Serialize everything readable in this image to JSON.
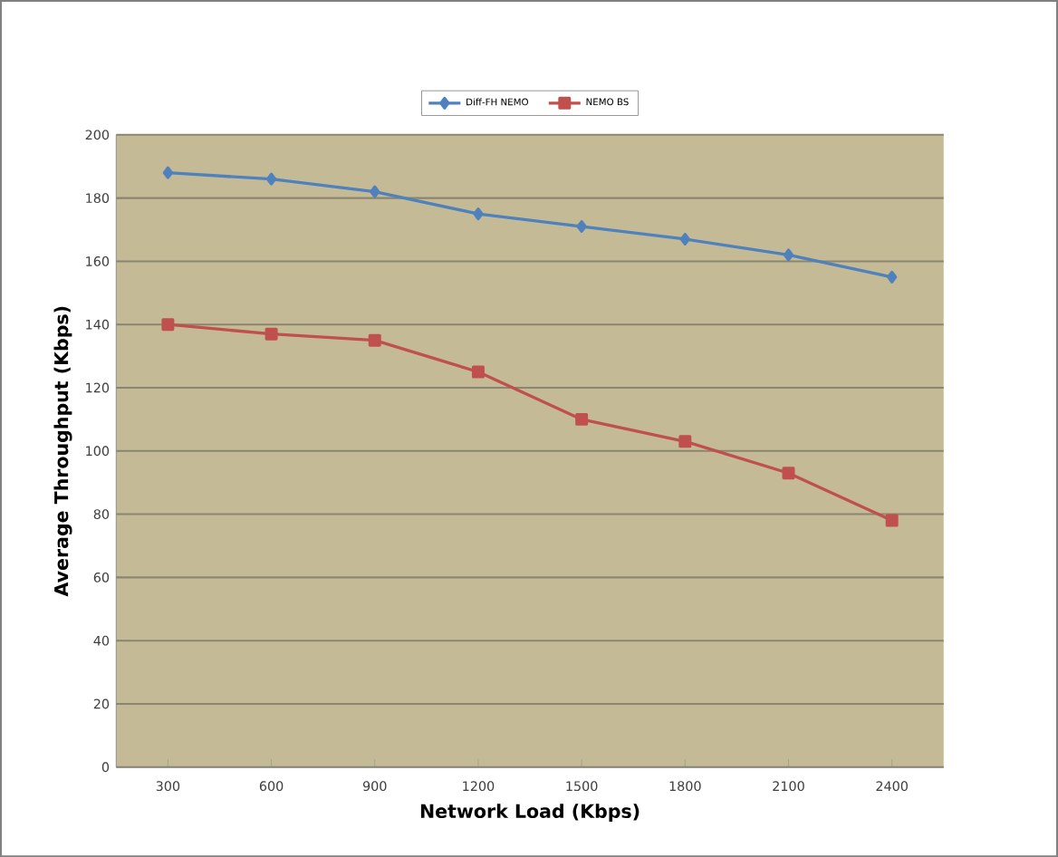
{
  "chart_data": {
    "type": "line",
    "xlabel": "Network Load (Kbps)",
    "ylabel": "Average Throughput  (Kbps)",
    "categories": [
      "300",
      "600",
      "900",
      "1200",
      "1500",
      "1800",
      "2100",
      "2400"
    ],
    "series": [
      {
        "name": "Diff-FH NEMO",
        "color": "#4f81bd",
        "marker": "diamond",
        "values": [
          188,
          186,
          182,
          175,
          171,
          167,
          162,
          155
        ]
      },
      {
        "name": "NEMO BS",
        "color": "#c0504d",
        "marker": "square",
        "values": [
          140,
          137,
          135,
          125,
          110,
          103,
          93,
          78
        ]
      }
    ],
    "ylim": [
      0,
      200
    ],
    "yticks": [
      0,
      20,
      40,
      60,
      80,
      100,
      120,
      140,
      160,
      180,
      200
    ],
    "grid": "y",
    "legend": "top"
  }
}
